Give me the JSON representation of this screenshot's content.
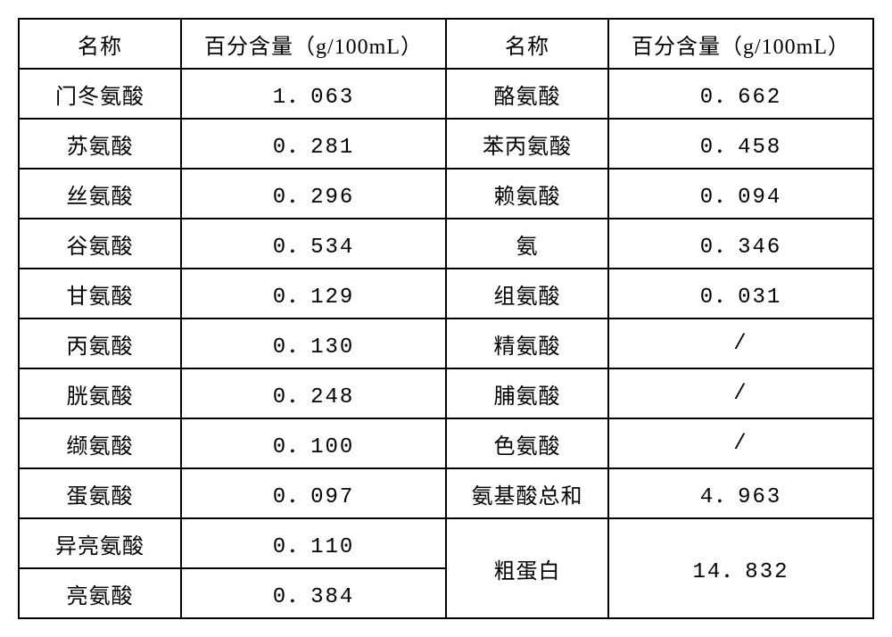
{
  "table": {
    "type": "table",
    "headers": {
      "name": "名称",
      "value": "百分含量（g/100mL）"
    },
    "columns": [
      "name_l",
      "val_l",
      "name_r",
      "val_r"
    ],
    "col_classes": [
      "col-name",
      "col-val",
      "col-name",
      "col-val"
    ],
    "border_color": "#000000",
    "bg_color": "#ffffff",
    "text_color": "#000000",
    "font_size_pt": 18,
    "rows": [
      {
        "name_l": "门冬氨酸",
        "val_l": "1．063",
        "name_r": "酪氨酸",
        "val_r": "0．662"
      },
      {
        "name_l": "苏氨酸",
        "val_l": "0．281",
        "name_r": "苯丙氨酸",
        "val_r": "0．458"
      },
      {
        "name_l": "丝氨酸",
        "val_l": "0．296",
        "name_r": "赖氨酸",
        "val_r": "0．094"
      },
      {
        "name_l": "谷氨酸",
        "val_l": "0．534",
        "name_r": "氨",
        "val_r": "0．346"
      },
      {
        "name_l": "甘氨酸",
        "val_l": "0．129",
        "name_r": "组氨酸",
        "val_r": "0．031"
      },
      {
        "name_l": "丙氨酸",
        "val_l": "0．130",
        "name_r": "精氨酸",
        "val_r": "/"
      },
      {
        "name_l": "胱氨酸",
        "val_l": "0．248",
        "name_r": "脯氨酸",
        "val_r": "/"
      },
      {
        "name_l": "缬氨酸",
        "val_l": "0．100",
        "name_r": "色氨酸",
        "val_r": "/"
      },
      {
        "name_l": "蛋氨酸",
        "val_l": "0．097",
        "name_r": "氨基酸总和",
        "val_r": "4．963"
      }
    ],
    "bottom": {
      "name_l_a": "异亮氨酸",
      "val_l_a": "0．110",
      "name_l_b": "亮氨酸",
      "val_l_b": "0．384",
      "name_r": "粗蛋白",
      "val_r": "14．832"
    }
  }
}
